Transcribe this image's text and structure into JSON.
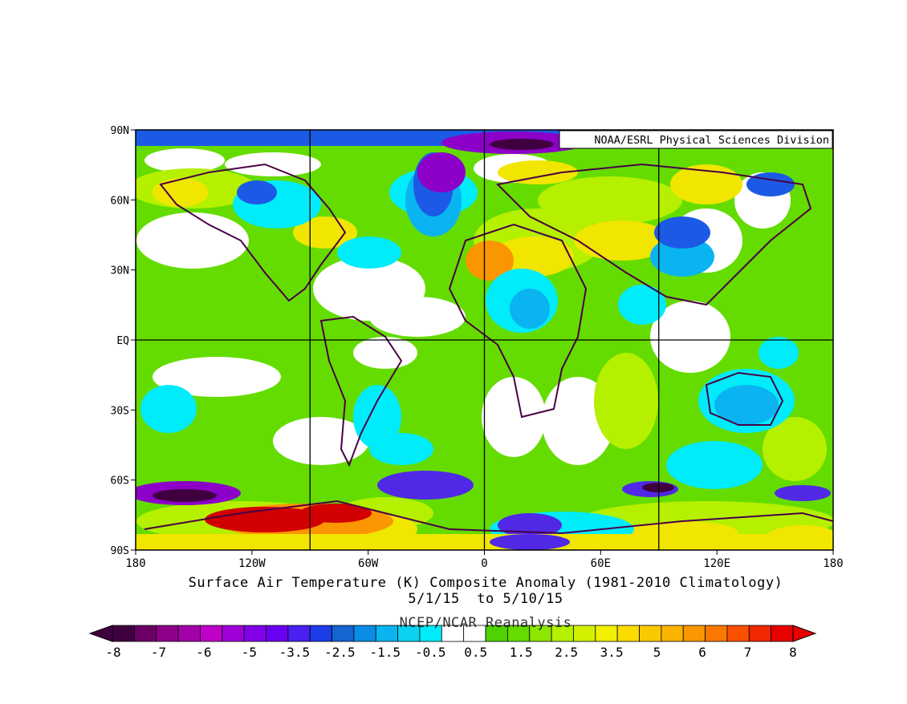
{
  "credit": "NOAA/ESRL Physical Sciences Division",
  "title": "Surface Air Temperature (K) Composite Anomaly (1981-2010 Climatology)",
  "date_range": "5/1/15  to 5/10/15",
  "source": "NCEP/NCAR Reanalysis",
  "map": {
    "lon_labels": [
      "180",
      "120W",
      "60W",
      "0",
      "60E",
      "120E",
      "180"
    ],
    "lat_labels": [
      "90N",
      "60N",
      "30N",
      "EQ",
      "30S",
      "60S",
      "90S"
    ],
    "colorbar_labels": [
      "-8",
      "-7",
      "-6",
      "-5",
      "-3.5",
      "-2.5",
      "-1.5",
      "-0.5",
      "0.5",
      "1.5",
      "2.5",
      "3.5",
      "5",
      "6",
      "7",
      "8"
    ],
    "colorbar_colors": [
      "#40003f",
      "#6a0064",
      "#8c0089",
      "#a400a8",
      "#c000c8",
      "#a000d8",
      "#8200e6",
      "#6a00f0",
      "#4a20f0",
      "#1c3ce6",
      "#1464d2",
      "#0a8ce6",
      "#0ab4f0",
      "#0ad2f0",
      "#00ecfa",
      "#ffffff",
      "#ffffff",
      "#50d200",
      "#64dc00",
      "#8ce600",
      "#b4f000",
      "#d2f000",
      "#f0f000",
      "#fadc00",
      "#fac800",
      "#fab400",
      "#fa9600",
      "#fa7800",
      "#fa5000",
      "#f02800",
      "#e60000"
    ],
    "fill_colors": {
      "warm_light": "#64dc00",
      "warm_mid": "#b4f000",
      "warm_yellow": "#f0e600",
      "warm_orange": "#fa9600",
      "warm_red": "#d20000",
      "cool_cyan": "#00ecfa",
      "cool_sky": "#0ab4f0",
      "cool_blue": "#1c5ae6",
      "cool_indigo": "#5028e6",
      "cool_purple": "#8c00c8",
      "cool_dark": "#40003f",
      "border": "#4a0046"
    }
  }
}
